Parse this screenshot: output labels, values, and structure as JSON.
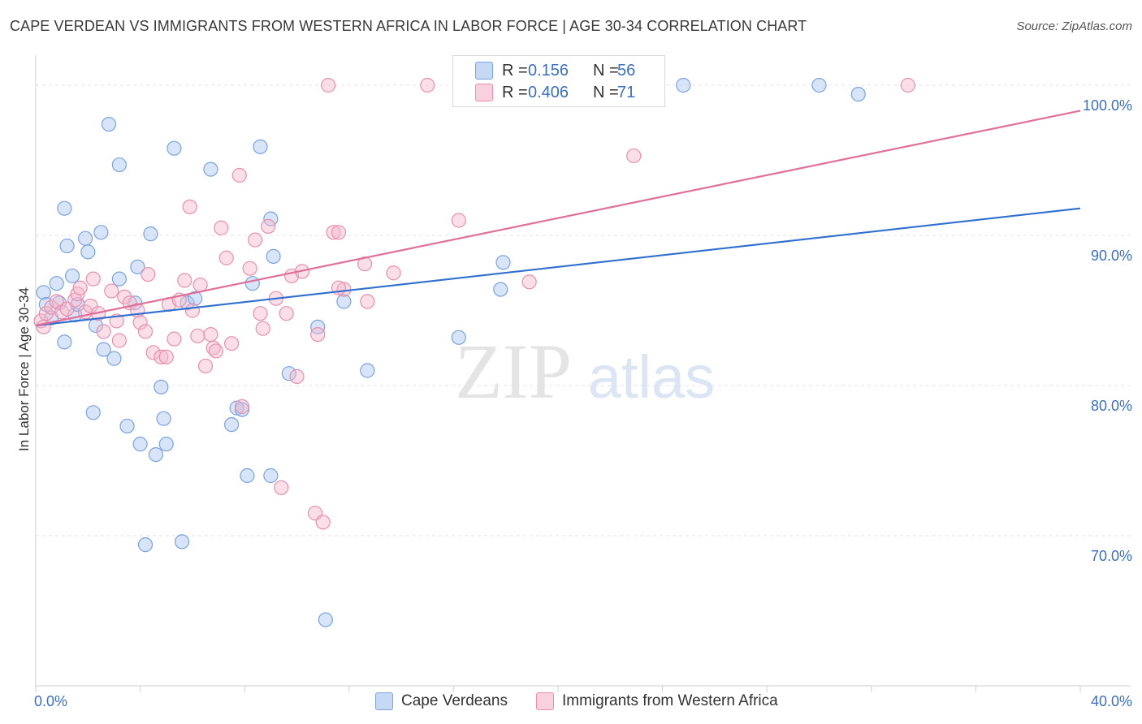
{
  "title": "CAPE VERDEAN VS IMMIGRANTS FROM WESTERN AFRICA IN LABOR FORCE | AGE 30-34 CORRELATION CHART",
  "source": "Source: ZipAtlas.com",
  "watermark": {
    "zip": "ZIP",
    "atlas": "atlas"
  },
  "legend": {
    "r_label": "R =",
    "n_label": "N =",
    "entries": [
      {
        "r": "0.156",
        "n": "56"
      },
      {
        "r": "0.406",
        "n": "71"
      }
    ]
  },
  "colors": {
    "blue_fill": "#a9c6ef",
    "blue_stroke": "#7aa3e0",
    "blue_line": "#2f6fcf",
    "pink_fill": "#f4b8cc",
    "pink_stroke": "#e98fad",
    "pink_line": "#e0709a",
    "tick_label": "#3a6fc4"
  },
  "chart_data": {
    "type": "scatter",
    "title": "CAPE VERDEAN VS IMMIGRANTS FROM WESTERN AFRICA IN LABOR FORCE | AGE 30-34 CORRELATION CHART",
    "xlabel": "",
    "ylabel": "In Labor Force | Age 30-34",
    "xlim": [
      0,
      40
    ],
    "ylim": [
      60,
      102
    ],
    "x_tick_labels": [
      "0.0%",
      "40.0%"
    ],
    "y_ticks": [
      {
        "value": 70,
        "label": "70.0%"
      },
      {
        "value": 80,
        "label": "80.0%"
      },
      {
        "value": 90,
        "label": "90.0%"
      },
      {
        "value": 100,
        "label": "100.0%"
      }
    ],
    "grid": true,
    "series": [
      {
        "name": "Cape Verdeans",
        "color": "#a9c6ef",
        "r": 0.156,
        "n": 56,
        "trend": {
          "x": [
            0,
            40
          ],
          "y": [
            84.0,
            91.8
          ]
        },
        "points": [
          [
            0.3,
            86.2
          ],
          [
            0.4,
            85.4
          ],
          [
            0.6,
            84.5
          ],
          [
            0.8,
            86.8
          ],
          [
            0.9,
            85.5
          ],
          [
            1.1,
            91.8
          ],
          [
            1.1,
            82.9
          ],
          [
            1.2,
            89.3
          ],
          [
            1.4,
            87.3
          ],
          [
            1.5,
            84.7
          ],
          [
            1.6,
            85.4
          ],
          [
            1.9,
            89.8
          ],
          [
            2.0,
            88.9
          ],
          [
            2.2,
            78.2
          ],
          [
            2.3,
            84.0
          ],
          [
            2.5,
            90.2
          ],
          [
            2.6,
            82.4
          ],
          [
            2.8,
            97.4
          ],
          [
            3.0,
            81.8
          ],
          [
            3.2,
            94.7
          ],
          [
            3.2,
            87.1
          ],
          [
            3.5,
            77.3
          ],
          [
            3.8,
            85.5
          ],
          [
            3.9,
            87.9
          ],
          [
            4.0,
            76.1
          ],
          [
            4.2,
            69.4
          ],
          [
            4.4,
            90.1
          ],
          [
            4.6,
            75.4
          ],
          [
            4.8,
            79.9
          ],
          [
            4.9,
            77.8
          ],
          [
            5.0,
            76.1
          ],
          [
            5.3,
            95.8
          ],
          [
            5.6,
            69.6
          ],
          [
            5.8,
            85.5
          ],
          [
            6.1,
            85.8
          ],
          [
            6.7,
            94.4
          ],
          [
            7.5,
            77.4
          ],
          [
            7.7,
            78.5
          ],
          [
            7.9,
            78.4
          ],
          [
            8.1,
            74.0
          ],
          [
            8.3,
            86.8
          ],
          [
            8.6,
            95.9
          ],
          [
            9.0,
            74.0
          ],
          [
            9.0,
            91.1
          ],
          [
            9.1,
            88.6
          ],
          [
            9.7,
            80.8
          ],
          [
            10.8,
            83.9
          ],
          [
            11.1,
            64.4
          ],
          [
            11.8,
            85.6
          ],
          [
            12.7,
            81.0
          ],
          [
            16.2,
            83.2
          ],
          [
            17.8,
            86.4
          ],
          [
            17.9,
            88.2
          ],
          [
            24.8,
            100.0
          ],
          [
            30.0,
            100.0
          ],
          [
            31.5,
            99.4
          ]
        ]
      },
      {
        "name": "Immigrants from Western Africa",
        "color": "#f4b8cc",
        "r": 0.406,
        "n": 71,
        "trend": {
          "x": [
            0,
            40
          ],
          "y": [
            84.0,
            98.3
          ]
        },
        "points": [
          [
            0.2,
            84.3
          ],
          [
            0.3,
            83.9
          ],
          [
            0.4,
            84.8
          ],
          [
            0.6,
            85.2
          ],
          [
            0.8,
            85.6
          ],
          [
            1.0,
            84.9
          ],
          [
            1.2,
            85.1
          ],
          [
            1.5,
            85.7
          ],
          [
            1.6,
            86.1
          ],
          [
            1.7,
            86.5
          ],
          [
            1.9,
            84.9
          ],
          [
            2.1,
            85.3
          ],
          [
            2.2,
            87.1
          ],
          [
            2.4,
            84.8
          ],
          [
            2.6,
            83.6
          ],
          [
            2.9,
            86.3
          ],
          [
            3.1,
            84.3
          ],
          [
            3.2,
            83.0
          ],
          [
            3.4,
            85.9
          ],
          [
            3.6,
            85.5
          ],
          [
            3.9,
            85.0
          ],
          [
            4.0,
            84.2
          ],
          [
            4.2,
            83.6
          ],
          [
            4.3,
            87.4
          ],
          [
            4.5,
            82.2
          ],
          [
            4.8,
            81.9
          ],
          [
            5.0,
            81.9
          ],
          [
            5.1,
            85.4
          ],
          [
            5.3,
            83.1
          ],
          [
            5.5,
            85.7
          ],
          [
            5.7,
            87.0
          ],
          [
            5.9,
            91.9
          ],
          [
            6.0,
            85.0
          ],
          [
            6.2,
            83.3
          ],
          [
            6.3,
            86.7
          ],
          [
            6.5,
            81.3
          ],
          [
            6.7,
            83.4
          ],
          [
            6.8,
            82.5
          ],
          [
            6.9,
            82.3
          ],
          [
            7.1,
            90.5
          ],
          [
            7.3,
            88.5
          ],
          [
            7.5,
            82.8
          ],
          [
            7.8,
            94.0
          ],
          [
            7.9,
            78.6
          ],
          [
            8.2,
            87.8
          ],
          [
            8.4,
            89.7
          ],
          [
            8.6,
            84.8
          ],
          [
            8.7,
            83.8
          ],
          [
            8.9,
            90.6
          ],
          [
            9.2,
            85.8
          ],
          [
            9.4,
            73.2
          ],
          [
            9.6,
            84.8
          ],
          [
            9.8,
            87.3
          ],
          [
            10.0,
            80.6
          ],
          [
            10.2,
            87.6
          ],
          [
            10.7,
            71.5
          ],
          [
            10.8,
            83.4
          ],
          [
            11.0,
            70.9
          ],
          [
            11.2,
            100.0
          ],
          [
            11.4,
            90.2
          ],
          [
            11.6,
            90.2
          ],
          [
            11.8,
            86.4
          ],
          [
            12.6,
            88.1
          ],
          [
            12.7,
            85.6
          ],
          [
            13.7,
            87.5
          ],
          [
            15.0,
            100.0
          ],
          [
            16.2,
            91.0
          ],
          [
            18.9,
            86.9
          ],
          [
            22.9,
            95.3
          ],
          [
            33.4,
            100.0
          ],
          [
            11.6,
            86.5
          ]
        ]
      }
    ]
  }
}
